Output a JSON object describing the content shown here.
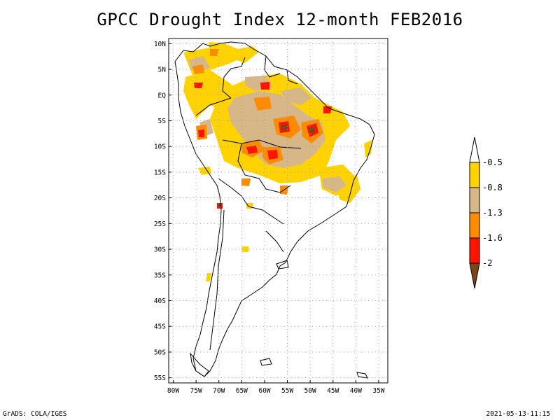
{
  "title": "GPCC Drought Index 12-month FEB2016",
  "footer": {
    "credit": "GrADS: COLA/IGES",
    "timestamp": "2021-05-13-11:15"
  },
  "map": {
    "region": "South America",
    "lon_range": [
      -81,
      -33
    ],
    "lat_range": [
      -56,
      11
    ],
    "lat_ticks": [
      {
        "lat": 10,
        "label": "10N"
      },
      {
        "lat": 5,
        "label": "5N"
      },
      {
        "lat": 0,
        "label": "EQ"
      },
      {
        "lat": -5,
        "label": "5S"
      },
      {
        "lat": -10,
        "label": "10S"
      },
      {
        "lat": -15,
        "label": "15S"
      },
      {
        "lat": -20,
        "label": "20S"
      },
      {
        "lat": -25,
        "label": "25S"
      },
      {
        "lat": -30,
        "label": "30S"
      },
      {
        "lat": -35,
        "label": "35S"
      },
      {
        "lat": -40,
        "label": "40S"
      },
      {
        "lat": -45,
        "label": "45S"
      },
      {
        "lat": -50,
        "label": "50S"
      },
      {
        "lat": -55,
        "label": "55S"
      }
    ],
    "lon_ticks": [
      {
        "lon": -80,
        "label": "80W"
      },
      {
        "lon": -75,
        "label": "75W"
      },
      {
        "lon": -70,
        "label": "70W"
      },
      {
        "lon": -65,
        "label": "65W"
      },
      {
        "lon": -60,
        "label": "60W"
      },
      {
        "lon": -55,
        "label": "55W"
      },
      {
        "lon": -50,
        "label": "50W"
      },
      {
        "lon": -45,
        "label": "45W"
      },
      {
        "lon": -40,
        "label": "40W"
      },
      {
        "lon": -35,
        "label": "35W"
      }
    ]
  },
  "legend": {
    "colors": [
      "#ffd200",
      "#d7b688",
      "#ff8c00",
      "#ff1400",
      "#7d4614"
    ],
    "top_color": "#ffffff",
    "labels": [
      "-0.5",
      "-0.8",
      "-1.3",
      "-1.6",
      "-2"
    ]
  }
}
